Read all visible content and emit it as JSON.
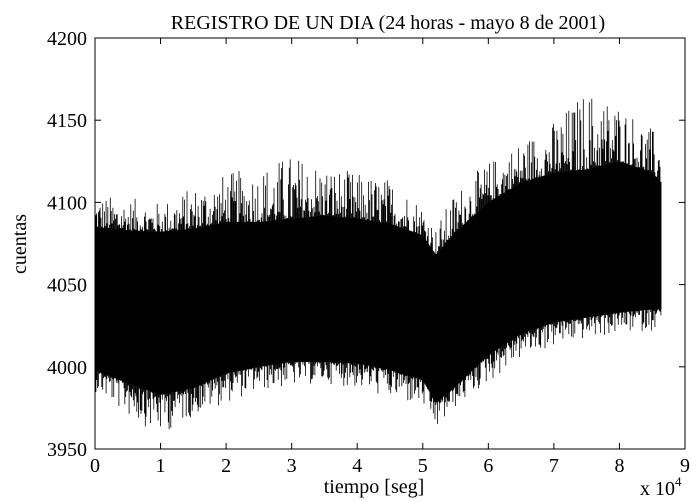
{
  "chart_data": {
    "type": "line",
    "title": "REGISTRO DE UN DIA (24 horas - mayo 8 de 2001)",
    "xlabel": "tiempo  [seg]",
    "ylabel": "cuentas",
    "x_multiplier": "x 10",
    "x_multiplier_exp": "4",
    "xlim": [
      0,
      90000
    ],
    "ylim": [
      3950,
      4200
    ],
    "x_ticks": [
      0,
      10000,
      20000,
      30000,
      40000,
      50000,
      60000,
      70000,
      80000,
      90000
    ],
    "x_tick_labels": [
      "0",
      "1",
      "2",
      "3",
      "4",
      "5",
      "6",
      "7",
      "8",
      "9"
    ],
    "y_ticks": [
      3950,
      4000,
      4050,
      4100,
      4150,
      4200
    ],
    "y_tick_labels": [
      "3950",
      "4000",
      "4050",
      "4100",
      "4150",
      "4200"
    ],
    "grid": false,
    "legend": "none",
    "series": [
      {
        "x": [
          0,
          5000,
          10000,
          15000,
          20000,
          25000,
          30000,
          35000,
          40000,
          45000,
          50000,
          52000,
          55000,
          60000,
          65000,
          70000,
          75000,
          80000,
          85000,
          86400
        ],
        "y_upper": [
          4085,
          4083,
          4082,
          4084,
          4088,
          4088,
          4090,
          4092,
          4090,
          4087,
          4080,
          4068,
          4082,
          4100,
          4112,
          4118,
          4120,
          4125,
          4118,
          4112
        ],
        "y_lower": [
          3998,
          3990,
          3983,
          3987,
          3996,
          4000,
          4003,
          4003,
          4002,
          3998,
          3992,
          3978,
          3988,
          4007,
          4020,
          4027,
          4030,
          4033,
          4035,
          4035
        ],
        "y_min": [
          3985,
          3970,
          3958,
          3970,
          3978,
          3985,
          3988,
          3990,
          3987,
          3980,
          3975,
          3960,
          3975,
          3990,
          4005,
          4012,
          4017,
          4020,
          4022,
          4025
        ],
        "y_max": [
          4105,
          4103,
          4100,
          4110,
          4118,
          4122,
          4130,
          4124,
          4118,
          4115,
          4100,
          4085,
          4108,
          4125,
          4138,
          4150,
          4170,
          4162,
          4145,
          4140
        ]
      }
    ]
  },
  "colors": {
    "series": "#000000",
    "axes": "#000000",
    "background": "#ffffff"
  }
}
